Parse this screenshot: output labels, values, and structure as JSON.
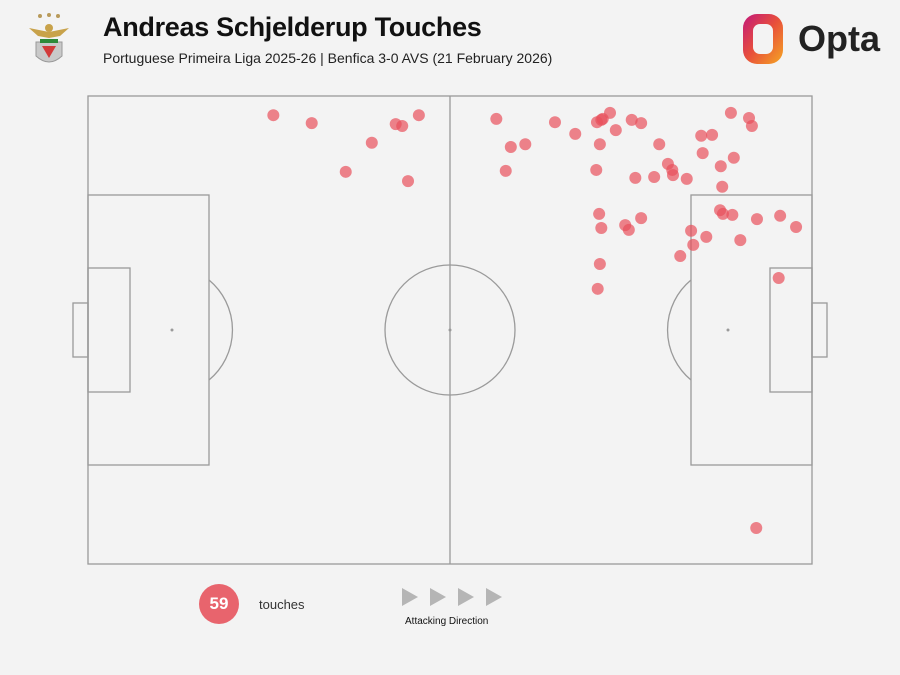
{
  "header": {
    "title": "Andreas Schjelderup Touches",
    "subtitle": "Portuguese Primeira Liga 2025-26 | Benfica 3-0 AVS (21 February 2026)",
    "brand": "Opta",
    "team_crest": "Benfica"
  },
  "legend": {
    "count": "59",
    "count_label": "touches",
    "direction_label": "Attacking Direction"
  },
  "colors": {
    "dot": "#e8505b",
    "pitch_lines": "#9a9a9a",
    "background": "#f3f3f3"
  },
  "chart_data": {
    "type": "scatter",
    "title": "Andreas Schjelderup Touches",
    "xlabel": "",
    "ylabel": "",
    "xlim": [
      0,
      100
    ],
    "ylim": [
      0,
      100
    ],
    "grid": false,
    "attacking_direction": "left-to-right",
    "points": [
      [
        25.6,
        95.9
      ],
      [
        30.9,
        94.2
      ],
      [
        42.5,
        94.0
      ],
      [
        43.4,
        93.6
      ],
      [
        45.7,
        95.9
      ],
      [
        39.2,
        90.0
      ],
      [
        35.6,
        83.8
      ],
      [
        44.2,
        81.8
      ],
      [
        56.4,
        95.1
      ],
      [
        64.5,
        94.4
      ],
      [
        67.3,
        91.9
      ],
      [
        58.4,
        89.1
      ],
      [
        60.4,
        89.7
      ],
      [
        57.7,
        84.0
      ],
      [
        70.3,
        94.4
      ],
      [
        70.9,
        94.9
      ],
      [
        71.1,
        95.1
      ],
      [
        72.1,
        96.4
      ],
      [
        72.9,
        92.7
      ],
      [
        70.7,
        89.7
      ],
      [
        75.1,
        94.9
      ],
      [
        76.4,
        94.2
      ],
      [
        78.9,
        89.7
      ],
      [
        70.2,
        84.2
      ],
      [
        75.6,
        82.5
      ],
      [
        78.2,
        82.7
      ],
      [
        80.1,
        85.5
      ],
      [
        80.7,
        84.2
      ],
      [
        80.8,
        83.1
      ],
      [
        82.7,
        82.3
      ],
      [
        84.7,
        91.5
      ],
      [
        86.2,
        91.7
      ],
      [
        84.9,
        87.8
      ],
      [
        88.8,
        96.4
      ],
      [
        91.3,
        95.3
      ],
      [
        91.7,
        93.6
      ],
      [
        89.2,
        86.8
      ],
      [
        87.4,
        85.0
      ],
      [
        87.6,
        80.6
      ],
      [
        70.6,
        74.8
      ],
      [
        70.9,
        71.8
      ],
      [
        74.2,
        72.4
      ],
      [
        74.7,
        71.4
      ],
      [
        76.4,
        73.9
      ],
      [
        87.3,
        75.6
      ],
      [
        87.7,
        74.8
      ],
      [
        89.0,
        74.6
      ],
      [
        92.4,
        73.7
      ],
      [
        95.6,
        74.4
      ],
      [
        97.8,
        72.0
      ],
      [
        83.3,
        71.2
      ],
      [
        85.4,
        69.9
      ],
      [
        83.6,
        68.2
      ],
      [
        90.1,
        69.2
      ],
      [
        81.8,
        65.8
      ],
      [
        70.7,
        64.1
      ],
      [
        70.4,
        58.8
      ],
      [
        95.4,
        61.1
      ],
      [
        92.3,
        7.7
      ]
    ]
  }
}
